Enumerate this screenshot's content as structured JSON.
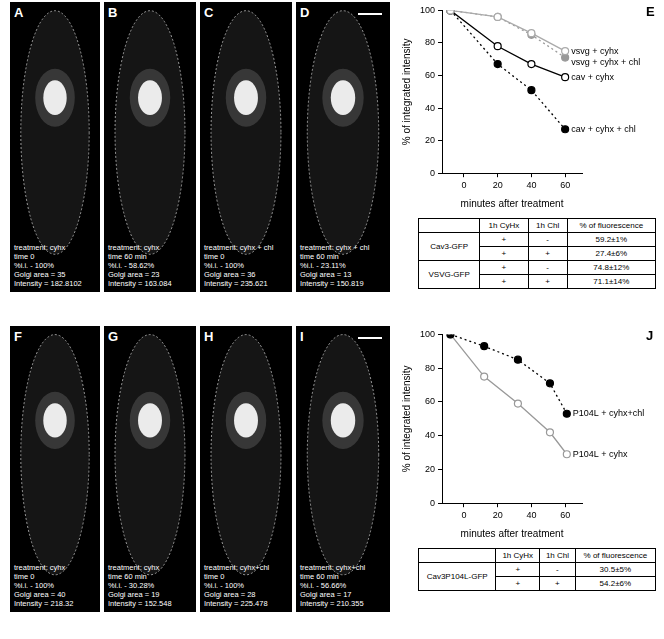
{
  "images": [
    {
      "label": "A",
      "row": 0,
      "lines": [
        "treatment: cyhx",
        "time 0",
        "%i.i. - 100%",
        "Golgi area = 35",
        "Intensity = 182.8102"
      ]
    },
    {
      "label": "B",
      "row": 0,
      "lines": [
        "treatment: cyhx",
        "time 60 min",
        "%i.i. -  58.62%",
        "Golgi area = 23",
        "Intensity = 163.084"
      ]
    },
    {
      "label": "C",
      "row": 0,
      "lines": [
        "treatment: cyhx + chl",
        "time 0",
        "%i.i. - 100%",
        "Golgi area = 36",
        "Intensity = 235.621"
      ]
    },
    {
      "label": "D",
      "row": 0,
      "lines": [
        "treatment: cyhx + chl",
        "time 60 min",
        "%i.i. -  23.11%",
        "Golgi area = 13",
        "Intensity = 150.819"
      ]
    },
    {
      "label": "F",
      "row": 1,
      "lines": [
        "treatment: cyhx",
        "time 0",
        "%i.i. - 100%",
        "Golgi area = 40",
        "Intensity = 218.32"
      ]
    },
    {
      "label": "G",
      "row": 1,
      "lines": [
        "treatment: cyhx",
        "time 60 min",
        "%i.i. -  30.28%",
        "Golgi area = 19",
        "Intensity = 152.548"
      ]
    },
    {
      "label": "H",
      "row": 1,
      "lines": [
        "treatment: cyhx+chl",
        "time 0",
        "%i.i. - 100%",
        "Golgi area = 28",
        "Intensity = 225.478"
      ]
    },
    {
      "label": "I",
      "row": 1,
      "lines": [
        "treatment: cyhx+chl",
        "time 60 min",
        "%i.i. -  56.66%",
        "Golgi area = 17",
        "Intensity = 210.355"
      ]
    }
  ],
  "chart_data": [
    {
      "type": "line",
      "title": "E",
      "y_label": "% of integrated intensity",
      "x_label": "minutes after treatment",
      "x": [
        -8,
        20,
        40,
        60
      ],
      "xlim": [
        -13,
        70
      ],
      "xticks": [
        0,
        20,
        40,
        60
      ],
      "ylim": [
        0,
        100
      ],
      "yticks": [
        0,
        20,
        40,
        60,
        80,
        100
      ],
      "grid": false,
      "series": [
        {
          "name": "vsvg + cyhx",
          "color": "#aaaaaa",
          "marker": "circle_open",
          "line_style": "solid",
          "values": [
            100,
            96,
            86,
            75
          ]
        },
        {
          "name": "vsvg + cyhx + chl",
          "color": "#999999",
          "marker": "circle",
          "line_style": "dotted",
          "values": [
            100,
            96,
            85,
            71
          ]
        },
        {
          "name": "cav + cyhx",
          "color": "#000000",
          "marker": "circle_open",
          "line_style": "solid",
          "values": [
            100,
            78,
            67,
            59
          ]
        },
        {
          "name": "cav + cyhx + chl",
          "color": "#000000",
          "marker": "circle",
          "line_style": "dotted",
          "values": [
            100,
            67,
            51,
            27
          ]
        }
      ]
    },
    {
      "type": "line",
      "title": "J",
      "y_label": "% of integrated intensity",
      "x_label": "minutes after treatment",
      "x": [
        -8,
        12,
        32,
        51,
        61
      ],
      "xlim": [
        -13,
        70
      ],
      "xticks": [
        0,
        20,
        40,
        60
      ],
      "ylim": [
        0,
        100
      ],
      "yticks": [
        0,
        20,
        40,
        60,
        80,
        100
      ],
      "grid": false,
      "series": [
        {
          "name": "P104L + cyhx+chl",
          "color": "#000000",
          "marker": "circle",
          "line_style": "dotted",
          "values": [
            100,
            93,
            85,
            71,
            53
          ]
        },
        {
          "name": "P104L + cyhx",
          "color": "#999999",
          "marker": "circle_open",
          "line_style": "solid",
          "values": [
            100,
            75,
            59,
            42,
            29
          ]
        }
      ]
    }
  ],
  "tables": [
    {
      "header": [
        "1h CyHx",
        "1h Chl",
        "% of fluorescence"
      ],
      "groups": [
        {
          "construct": "Cav3-GFP",
          "rows": [
            [
              "+",
              "-",
              "59.2±1%"
            ],
            [
              "+",
              "+",
              "27.4±6%"
            ]
          ]
        },
        {
          "construct": "VSVG-GFP",
          "rows": [
            [
              "+",
              "-",
              "74.8±12%"
            ],
            [
              "+",
              "+",
              "71.1±14%"
            ]
          ]
        }
      ]
    },
    {
      "header": [
        "1h CyHx",
        "1h Chl",
        "% of fluorescence"
      ],
      "groups": [
        {
          "construct": "Cav3P104L-GFP",
          "rows": [
            [
              "+",
              "-",
              "30.5±5%"
            ],
            [
              "+",
              "+",
              "54.2±6%"
            ]
          ]
        }
      ]
    }
  ]
}
